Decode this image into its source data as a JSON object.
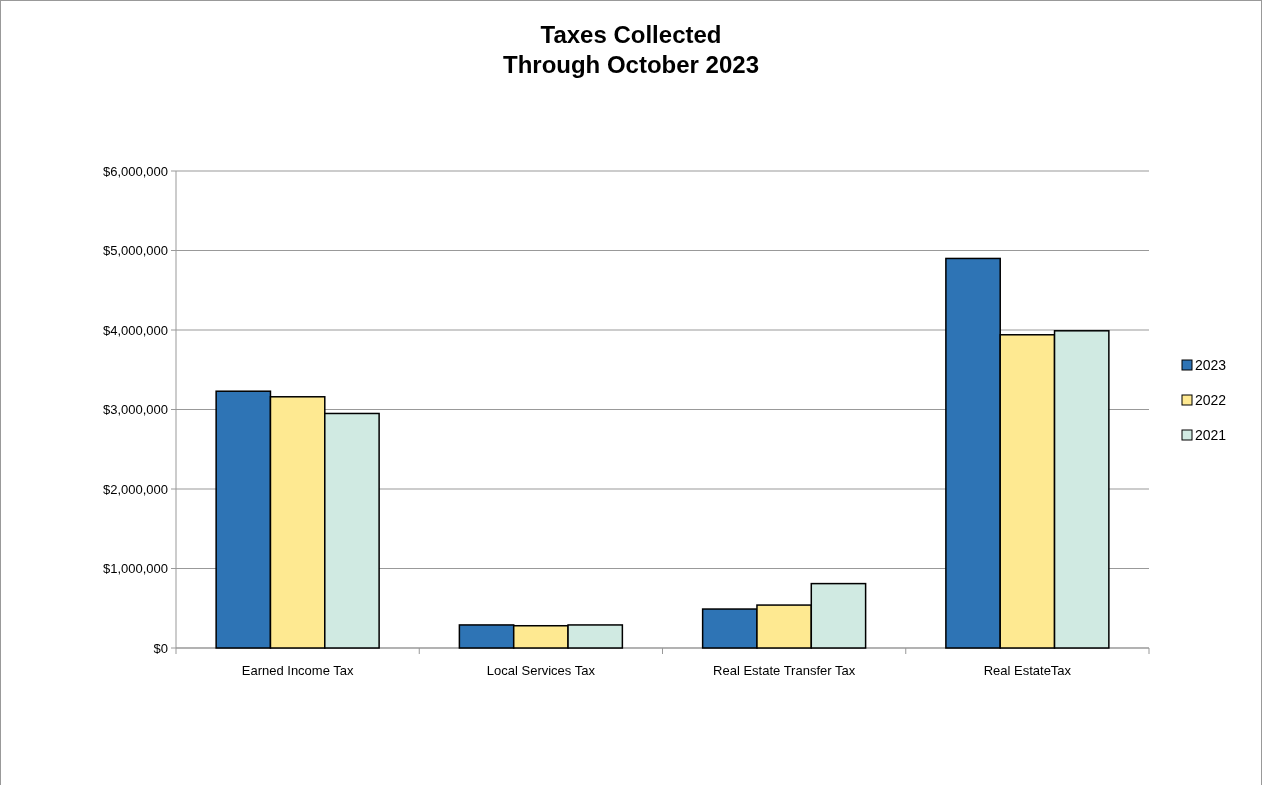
{
  "chart_data": {
    "type": "bar",
    "title": "Taxes Collected\nThrough October 2023",
    "categories": [
      "Earned Income Tax",
      "Local Services Tax",
      "Real Estate Transfer Tax",
      "Real EstateTax"
    ],
    "series": [
      {
        "name": "2023",
        "color": "#2e74b5",
        "values": [
          3230000,
          290000,
          490000,
          4900000
        ]
      },
      {
        "name": "2022",
        "color": "#fee991",
        "values": [
          3160000,
          280000,
          540000,
          3940000
        ]
      },
      {
        "name": "2021",
        "color": "#d0eae2",
        "values": [
          2950000,
          290000,
          810000,
          3990000
        ]
      }
    ],
    "ylim": [
      0,
      6000000
    ],
    "yticks": [
      {
        "value": 0,
        "label": "$0"
      },
      {
        "value": 1000000,
        "label": "$1,000,000"
      },
      {
        "value": 2000000,
        "label": "$2,000,000"
      },
      {
        "value": 3000000,
        "label": "$3,000,000"
      },
      {
        "value": 4000000,
        "label": "$4,000,000"
      },
      {
        "value": 5000000,
        "label": "$5,000,000"
      },
      {
        "value": 6000000,
        "label": "$6,000,000"
      }
    ],
    "grid": "y",
    "legend": "right"
  }
}
